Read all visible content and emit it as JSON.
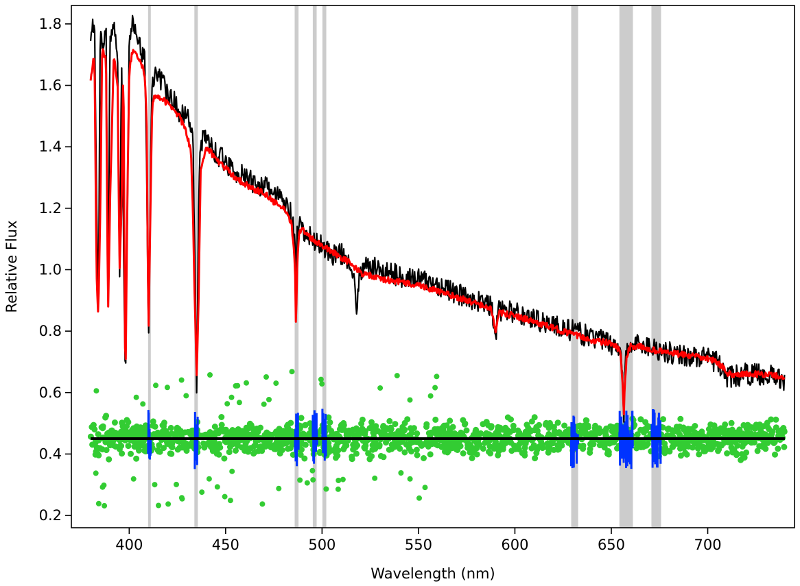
{
  "chart_data": {
    "type": "line",
    "title": "",
    "xlabel": "Wavelength (nm)",
    "ylabel": "Relative Flux",
    "xlim": [
      370,
      745
    ],
    "ylim": [
      0.16,
      1.86
    ],
    "xticks": [
      400,
      450,
      500,
      550,
      600,
      650,
      700
    ],
    "yticks": [
      0.2,
      0.4,
      0.6,
      0.8,
      1.0,
      1.2,
      1.4,
      1.6,
      1.8
    ],
    "xtick_labels": [
      "400",
      "450",
      "500",
      "550",
      "600",
      "650",
      "700"
    ],
    "ytick_labels": [
      "0.2",
      "0.4",
      "0.6",
      "0.8",
      "1.0",
      "1.2",
      "1.4",
      "1.6",
      "1.8"
    ],
    "grid": false,
    "masked_regions": [
      [
        409.8,
        411.2
      ],
      [
        433.8,
        435.6
      ],
      [
        485.8,
        487.8
      ],
      [
        495.2,
        497.2
      ],
      [
        500.2,
        502.2
      ],
      [
        629.2,
        632.8
      ],
      [
        654.2,
        661.2
      ],
      [
        670.8,
        675.8
      ]
    ],
    "residual_baseline": 0.45,
    "series": [
      {
        "color": "#000000",
        "x": [
          380,
          382,
          384,
          385,
          386,
          388,
          389,
          390,
          392,
          394,
          395,
          396,
          398,
          400,
          402,
          404,
          406,
          408,
          409,
          410,
          411,
          412,
          414,
          418,
          422,
          426,
          430,
          433,
          434,
          435,
          436,
          437,
          440,
          445,
          450,
          455,
          460,
          465,
          470,
          475,
          480,
          484,
          486,
          486.5,
          487,
          488,
          490,
          495,
          500,
          505,
          510,
          515,
          518,
          520,
          525,
          530,
          540,
          550,
          560,
          570,
          580,
          588,
          589,
          590,
          591,
          592,
          600,
          610,
          620,
          630,
          640,
          650,
          655,
          656,
          656.5,
          657,
          658,
          660,
          665,
          670,
          680,
          690,
          700,
          705,
          708,
          710,
          720,
          730,
          740
        ],
        "y": [
          1.78,
          1.8,
          0.77,
          1.82,
          1.7,
          1.8,
          0.82,
          1.75,
          1.78,
          1.7,
          0.95,
          1.72,
          0.6,
          1.75,
          1.8,
          1.78,
          1.72,
          1.68,
          1.35,
          0.76,
          1.3,
          1.62,
          1.65,
          1.6,
          1.57,
          1.5,
          1.52,
          1.45,
          1.05,
          0.6,
          1.2,
          1.42,
          1.43,
          1.38,
          1.35,
          1.32,
          1.3,
          1.28,
          1.27,
          1.25,
          1.22,
          1.18,
          1.1,
          0.78,
          1.1,
          1.15,
          1.12,
          1.1,
          1.08,
          1.05,
          1.05,
          1.03,
          0.88,
          1.0,
          1.01,
          1.0,
          0.98,
          0.97,
          0.95,
          0.92,
          0.9,
          0.88,
          0.82,
          0.79,
          0.84,
          0.87,
          0.86,
          0.84,
          0.82,
          0.8,
          0.78,
          0.76,
          0.74,
          0.65,
          0.5,
          0.67,
          0.73,
          0.75,
          0.76,
          0.75,
          0.73,
          0.72,
          0.71,
          0.7,
          0.67,
          0.65,
          0.66,
          0.66,
          0.64
        ]
      },
      {
        "color": "#ff0000",
        "x": [
          380,
          382,
          383,
          384,
          385,
          386,
          388,
          389,
          390,
          392,
          394,
          395,
          396,
          397,
          398,
          399,
          400,
          402,
          404,
          406,
          408,
          409,
          410,
          411,
          412,
          414,
          418,
          422,
          426,
          430,
          432,
          433,
          434,
          435,
          436,
          437,
          440,
          445,
          450,
          455,
          460,
          465,
          470,
          475,
          480,
          484,
          485,
          486,
          486.5,
          487,
          488,
          490,
          495,
          500,
          505,
          510,
          515,
          518,
          520,
          525,
          530,
          540,
          550,
          560,
          570,
          580,
          588,
          589,
          590,
          591,
          592,
          600,
          610,
          620,
          630,
          640,
          650,
          654,
          655,
          656,
          656.5,
          657,
          658,
          660,
          665,
          670,
          680,
          690,
          700,
          705,
          708,
          710,
          720,
          730,
          740
        ],
        "y": [
          1.62,
          1.7,
          1.0,
          0.85,
          1.2,
          1.72,
          1.68,
          0.85,
          1.2,
          1.7,
          1.6,
          1.0,
          1.2,
          1.7,
          0.58,
          1.2,
          1.65,
          1.72,
          1.7,
          1.68,
          1.63,
          1.5,
          0.78,
          1.2,
          1.55,
          1.57,
          1.55,
          1.53,
          1.5,
          1.44,
          1.38,
          1.2,
          0.9,
          0.64,
          0.9,
          1.32,
          1.4,
          1.36,
          1.33,
          1.3,
          1.28,
          1.26,
          1.25,
          1.22,
          1.2,
          1.15,
          1.1,
          1.0,
          0.8,
          1.0,
          1.12,
          1.13,
          1.1,
          1.08,
          1.06,
          1.04,
          1.02,
          1.0,
          0.99,
          0.98,
          0.97,
          0.96,
          0.95,
          0.93,
          0.91,
          0.89,
          0.87,
          0.83,
          0.79,
          0.83,
          0.86,
          0.85,
          0.83,
          0.81,
          0.79,
          0.77,
          0.76,
          0.74,
          0.72,
          0.6,
          0.53,
          0.62,
          0.72,
          0.75,
          0.75,
          0.74,
          0.73,
          0.72,
          0.71,
          0.7,
          0.68,
          0.66,
          0.66,
          0.66,
          0.65
        ]
      }
    ],
    "residual_bands": [
      {
        "color": "#33cc33",
        "x_start": 380,
        "x_end": 740,
        "y_low": 0.37,
        "y_high": 0.53
      },
      {
        "color": "#0033ff",
        "ranges": [
          [
            409.8,
            411.2
          ],
          [
            434.0,
            435.6
          ],
          [
            486.0,
            487.8
          ],
          [
            495.2,
            497.5
          ],
          [
            500.2,
            502.2
          ],
          [
            629.2,
            632.8
          ],
          [
            654.2,
            661.2
          ],
          [
            670.8,
            675.6
          ]
        ]
      }
    ]
  }
}
